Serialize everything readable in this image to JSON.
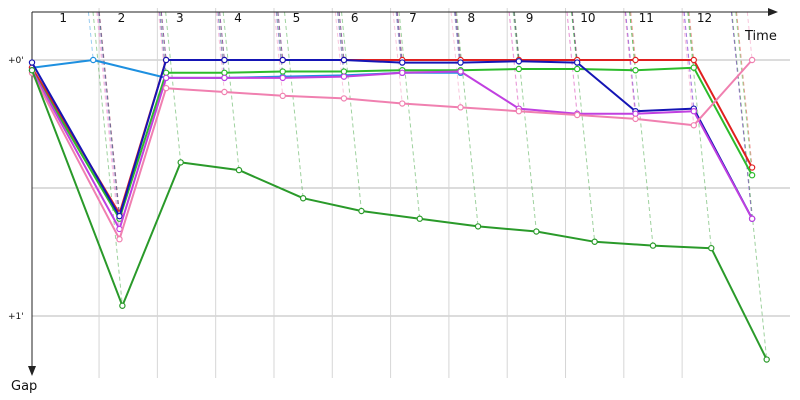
{
  "chart_data": {
    "type": "line",
    "title": "",
    "xlabel": "Time",
    "ylabel": "Gap",
    "x_ticks": [
      "1",
      "2",
      "3",
      "4",
      "5",
      "6",
      "7",
      "8",
      "9",
      "10",
      "11",
      "12"
    ],
    "y_ticks": [
      "+0'",
      "+1'"
    ],
    "y_tick_values": [
      0,
      1
    ],
    "ylim": [
      -0.12,
      1.25
    ],
    "xlim": [
      0,
      13.0
    ],
    "grid": true,
    "legend": "none",
    "series": [
      {
        "color": "#1e90e0",
        "points": [
          [
            0,
            0.03
          ],
          [
            1.05,
            0.0
          ],
          [
            2.3,
            0.07
          ],
          [
            3.3,
            0.07
          ],
          [
            4.3,
            0.065
          ],
          [
            5.35,
            0.06
          ],
          [
            6.35,
            0.05
          ],
          [
            7.35,
            0.05
          ]
        ]
      },
      {
        "color": "#e02020",
        "points": [
          [
            0,
            0.03
          ],
          [
            1.5,
            0.6
          ],
          [
            2.3,
            0.0
          ],
          [
            3.3,
            0.0
          ],
          [
            4.3,
            0.0
          ],
          [
            5.35,
            0.0
          ],
          [
            6.35,
            0.0
          ],
          [
            7.35,
            0.0
          ],
          [
            8.35,
            0.0
          ],
          [
            9.35,
            0.0
          ],
          [
            10.35,
            0.0
          ],
          [
            11.35,
            0.0
          ],
          [
            12.35,
            0.42
          ]
        ]
      },
      {
        "color": "#2cbb2c",
        "points": [
          [
            0,
            0.04
          ],
          [
            1.5,
            0.62
          ],
          [
            2.3,
            0.05
          ],
          [
            3.3,
            0.05
          ],
          [
            4.3,
            0.045
          ],
          [
            5.35,
            0.045
          ],
          [
            6.35,
            0.04
          ],
          [
            7.35,
            0.04
          ],
          [
            8.35,
            0.035
          ],
          [
            9.35,
            0.035
          ],
          [
            10.35,
            0.04
          ],
          [
            11.35,
            0.03
          ],
          [
            12.35,
            0.45
          ]
        ]
      },
      {
        "color": "#1515b5",
        "points": [
          [
            0,
            0.01
          ],
          [
            1.5,
            0.61
          ],
          [
            2.3,
            0.0
          ],
          [
            3.3,
            0.0
          ],
          [
            4.3,
            0.0
          ],
          [
            5.35,
            0.0
          ],
          [
            6.35,
            0.01
          ],
          [
            7.35,
            0.01
          ],
          [
            8.35,
            0.005
          ],
          [
            9.35,
            0.01
          ],
          [
            10.35,
            0.2
          ],
          [
            11.35,
            0.19
          ],
          [
            12.35,
            0.62
          ]
        ]
      },
      {
        "color": "#c040e0",
        "points": [
          [
            0,
            0.04
          ],
          [
            1.5,
            0.66
          ],
          [
            2.3,
            0.07
          ],
          [
            3.3,
            0.07
          ],
          [
            4.3,
            0.07
          ],
          [
            5.35,
            0.065
          ],
          [
            6.35,
            0.05
          ],
          [
            7.35,
            0.045
          ],
          [
            8.35,
            0.19
          ],
          [
            9.35,
            0.21
          ],
          [
            10.35,
            0.21
          ],
          [
            11.35,
            0.2
          ],
          [
            12.35,
            0.62
          ]
        ]
      },
      {
        "color": "#f080b0",
        "points": [
          [
            0,
            0.05
          ],
          [
            1.5,
            0.7
          ],
          [
            2.3,
            0.11
          ],
          [
            3.3,
            0.125
          ],
          [
            4.3,
            0.14
          ],
          [
            5.35,
            0.15
          ],
          [
            6.35,
            0.17
          ],
          [
            7.35,
            0.185
          ],
          [
            8.35,
            0.2
          ],
          [
            9.35,
            0.215
          ],
          [
            10.35,
            0.23
          ],
          [
            11.35,
            0.255
          ],
          [
            12.35,
            0.0
          ]
        ]
      },
      {
        "color": "#2a9a2a",
        "points": [
          [
            0,
            0.04
          ],
          [
            1.55,
            0.96
          ],
          [
            2.55,
            0.4
          ],
          [
            3.55,
            0.43
          ],
          [
            4.65,
            0.54
          ],
          [
            5.65,
            0.59
          ],
          [
            6.65,
            0.62
          ],
          [
            7.65,
            0.65
          ],
          [
            8.65,
            0.67
          ],
          [
            9.65,
            0.71
          ],
          [
            10.65,
            0.725
          ],
          [
            11.65,
            0.735
          ],
          [
            12.6,
            1.17
          ]
        ]
      }
    ]
  }
}
